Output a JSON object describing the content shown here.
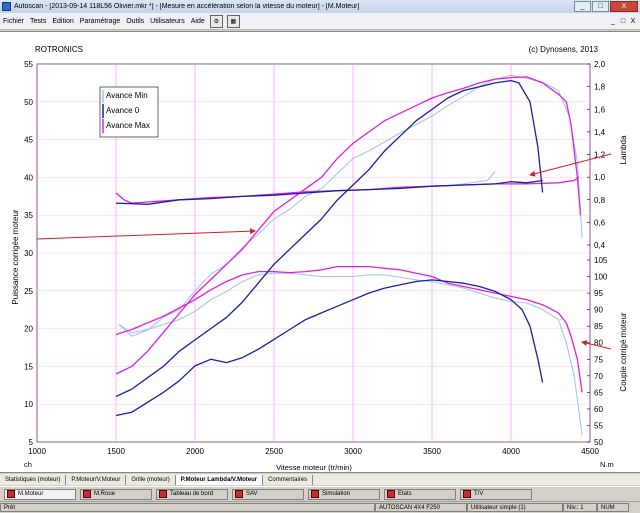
{
  "window": {
    "title": "Autoscan - [2013-09-14 118L56 Olivier.mkr *] - [Mesure en accélération selon la vitesse du moteur] - [M.Moteur]",
    "controls": [
      "_",
      "□",
      "X"
    ]
  },
  "menu": {
    "items": [
      "Fichier",
      "Tests",
      "Edition",
      "Paramétrage",
      "Outils",
      "Utilisateurs",
      "Aide"
    ],
    "doc_controls": [
      "_",
      "□",
      "X"
    ]
  },
  "chart_data": {
    "type": "line",
    "title": "ROTRONICS",
    "copyright": "(c) Dynosens, 2013",
    "xlabel": "Vitesse moteur (tr/min)",
    "x_unit": "ch",
    "x_unit_right": "N.m",
    "xlim": [
      1000,
      4500
    ],
    "x_ticks": [
      1000,
      1500,
      2000,
      2500,
      3000,
      3500,
      4000,
      4500
    ],
    "ylabel_left": "Puissance corrigée moteur",
    "ylim_left": [
      5,
      55
    ],
    "y_ticks_left": [
      5,
      10,
      15,
      20,
      25,
      30,
      35,
      40,
      45,
      50,
      55
    ],
    "ylabel_lambda": "Lambda",
    "ylim_lambda": [
      0.4,
      2.0
    ],
    "y_ticks_lambda": [
      "2,0",
      "1,8",
      "1,6",
      "1,4",
      "1,2",
      "1,0",
      "0,8",
      "0,6",
      "0,4"
    ],
    "ylabel_torque": "Couple corrigé moteur",
    "ylim_torque": [
      50,
      105
    ],
    "y_ticks_torque": [
      50,
      55,
      60,
      65,
      70,
      75,
      80,
      85,
      90,
      95,
      100,
      105
    ],
    "legend": [
      "Avance Min",
      "Avance 0",
      "Avance Max"
    ],
    "colors": {
      "Avance Min": "#9cc3e8",
      "Avance 0": "#1a1f9e",
      "Avance Max": "#e020e0",
      "arrow": "#d42020"
    },
    "series": [
      {
        "name": "Avance Min",
        "metric": "power",
        "points": [
          [
            1520,
            20.5
          ],
          [
            1600,
            19
          ],
          [
            1700,
            19.8
          ],
          [
            1800,
            21.5
          ],
          [
            1900,
            22.5
          ],
          [
            2000,
            25
          ],
          [
            2100,
            27.2
          ],
          [
            2200,
            28.5
          ],
          [
            2300,
            30.7
          ],
          [
            2400,
            32.5
          ],
          [
            2500,
            34.5
          ],
          [
            2600,
            35.8
          ],
          [
            2700,
            37.5
          ],
          [
            2800,
            38.5
          ],
          [
            2900,
            40.5
          ],
          [
            3000,
            42.5
          ],
          [
            3100,
            43.5
          ],
          [
            3200,
            44.7
          ],
          [
            3300,
            45.9
          ],
          [
            3400,
            47
          ],
          [
            3500,
            48.1
          ],
          [
            3600,
            49.5
          ],
          [
            3700,
            50.7
          ],
          [
            3800,
            52
          ],
          [
            3900,
            53
          ],
          [
            4000,
            53.5
          ],
          [
            4100,
            53.1
          ],
          [
            4200,
            52.6
          ],
          [
            4300,
            51.5
          ],
          [
            4370,
            48
          ],
          [
            4420,
            42
          ],
          [
            4450,
            32
          ]
        ]
      },
      {
        "name": "Avance 0",
        "metric": "power",
        "points": [
          [
            1500,
            11
          ],
          [
            1600,
            12
          ],
          [
            1700,
            13.5
          ],
          [
            1800,
            15
          ],
          [
            1900,
            17
          ],
          [
            2000,
            18.5
          ],
          [
            2100,
            20
          ],
          [
            2200,
            21.5
          ],
          [
            2300,
            23.5
          ],
          [
            2400,
            26
          ],
          [
            2500,
            28.5
          ],
          [
            2600,
            30.5
          ],
          [
            2700,
            32.5
          ],
          [
            2800,
            34.5
          ],
          [
            2900,
            37
          ],
          [
            3000,
            39
          ],
          [
            3100,
            41
          ],
          [
            3200,
            43.5
          ],
          [
            3300,
            45.5
          ],
          [
            3400,
            47.5
          ],
          [
            3500,
            49
          ],
          [
            3600,
            50.5
          ],
          [
            3700,
            51.5
          ],
          [
            3800,
            52
          ],
          [
            3900,
            52.5
          ],
          [
            4000,
            52.8
          ],
          [
            4050,
            52.5
          ],
          [
            4120,
            50
          ],
          [
            4170,
            44
          ],
          [
            4200,
            38
          ]
        ]
      },
      {
        "name": "Avance Max",
        "metric": "power",
        "points": [
          [
            1500,
            14
          ],
          [
            1600,
            15
          ],
          [
            1700,
            17
          ],
          [
            1800,
            19.5
          ],
          [
            1900,
            22
          ],
          [
            2000,
            24.5
          ],
          [
            2100,
            26.5
          ],
          [
            2200,
            28.5
          ],
          [
            2300,
            30.5
          ],
          [
            2400,
            33
          ],
          [
            2500,
            35.5
          ],
          [
            2600,
            37
          ],
          [
            2700,
            38.5
          ],
          [
            2800,
            40
          ],
          [
            2900,
            42.5
          ],
          [
            3000,
            44.5
          ],
          [
            3100,
            46
          ],
          [
            3200,
            47.5
          ],
          [
            3300,
            48.5
          ],
          [
            3400,
            49.5
          ],
          [
            3500,
            50.5
          ],
          [
            3600,
            51.2
          ],
          [
            3700,
            51.8
          ],
          [
            3800,
            52.5
          ],
          [
            3900,
            53
          ],
          [
            4000,
            53.2
          ],
          [
            4100,
            53.3
          ],
          [
            4200,
            52.5
          ],
          [
            4300,
            51
          ],
          [
            4350,
            50
          ],
          [
            4380,
            47
          ],
          [
            4420,
            40
          ],
          [
            4440,
            35
          ]
        ]
      },
      {
        "name": "Avance 0",
        "metric": "lambda",
        "points": [
          [
            1500,
            0.77
          ],
          [
            1700,
            0.76
          ],
          [
            1900,
            0.8
          ],
          [
            2100,
            0.81
          ],
          [
            2300,
            0.83
          ],
          [
            2500,
            0.84
          ],
          [
            2700,
            0.86
          ],
          [
            2900,
            0.88
          ],
          [
            3100,
            0.89
          ],
          [
            3300,
            0.9
          ],
          [
            3500,
            0.92
          ],
          [
            3700,
            0.93
          ],
          [
            3900,
            0.94
          ],
          [
            4000,
            0.96
          ],
          [
            4100,
            0.95
          ],
          [
            4200,
            0.97
          ]
        ]
      },
      {
        "name": "Avance Max",
        "metric": "lambda",
        "points": [
          [
            1500,
            0.86
          ],
          [
            1550,
            0.8
          ],
          [
            1600,
            0.77
          ],
          [
            1700,
            0.78
          ],
          [
            1900,
            0.8
          ],
          [
            2100,
            0.82
          ],
          [
            2300,
            0.83
          ],
          [
            2500,
            0.85
          ],
          [
            2700,
            0.87
          ],
          [
            2900,
            0.88
          ],
          [
            3100,
            0.89
          ],
          [
            3300,
            0.91
          ],
          [
            3500,
            0.92
          ],
          [
            3700,
            0.93
          ],
          [
            3900,
            0.94
          ],
          [
            4100,
            0.94
          ],
          [
            4300,
            0.95
          ],
          [
            4400,
            0.97
          ],
          [
            4430,
            1.0
          ]
        ]
      },
      {
        "name": "Avance Min",
        "metric": "lambda",
        "points": [
          [
            3650,
            0.93
          ],
          [
            3750,
            0.95
          ],
          [
            3850,
            0.97
          ],
          [
            3900,
            1.05
          ]
        ]
      },
      {
        "name": "Avance Min",
        "metric": "torque",
        "points": [
          [
            1520,
            85.5
          ],
          [
            1600,
            83
          ],
          [
            1700,
            84
          ],
          [
            1800,
            85.5
          ],
          [
            1900,
            87
          ],
          [
            2000,
            89.5
          ],
          [
            2100,
            93
          ],
          [
            2200,
            95.5
          ],
          [
            2300,
            98.5
          ],
          [
            2400,
            100.5
          ],
          [
            2500,
            101
          ],
          [
            2600,
            101
          ],
          [
            2700,
            100.5
          ],
          [
            2800,
            100
          ],
          [
            2900,
            100
          ],
          [
            3000,
            100
          ],
          [
            3100,
            100.5
          ],
          [
            3200,
            100.5
          ],
          [
            3300,
            99.8
          ],
          [
            3400,
            99
          ],
          [
            3500,
            98.5
          ],
          [
            3600,
            97.5
          ],
          [
            3700,
            96.5
          ],
          [
            3800,
            95
          ],
          [
            3900,
            93.5
          ],
          [
            4000,
            92.5
          ],
          [
            4100,
            92
          ],
          [
            4200,
            90
          ],
          [
            4300,
            87
          ],
          [
            4350,
            80
          ],
          [
            4400,
            70
          ],
          [
            4450,
            52
          ]
        ]
      },
      {
        "name": "Avance 0",
        "metric": "torque",
        "points": [
          [
            1500,
            58
          ],
          [
            1600,
            59
          ],
          [
            1700,
            62
          ],
          [
            1800,
            65
          ],
          [
            1900,
            68.5
          ],
          [
            2000,
            73
          ],
          [
            2100,
            75
          ],
          [
            2200,
            74
          ],
          [
            2300,
            75.5
          ],
          [
            2400,
            78
          ],
          [
            2500,
            81
          ],
          [
            2600,
            84
          ],
          [
            2700,
            87
          ],
          [
            2800,
            89
          ],
          [
            2900,
            91
          ],
          [
            3000,
            93
          ],
          [
            3100,
            95
          ],
          [
            3200,
            96.5
          ],
          [
            3300,
            97.5
          ],
          [
            3400,
            98.5
          ],
          [
            3500,
            99
          ],
          [
            3600,
            98.5
          ],
          [
            3700,
            98
          ],
          [
            3800,
            97
          ],
          [
            3900,
            95.5
          ],
          [
            4000,
            93
          ],
          [
            4070,
            90
          ],
          [
            4120,
            85
          ],
          [
            4170,
            75
          ],
          [
            4200,
            68
          ]
        ]
      },
      {
        "name": "Avance Max",
        "metric": "torque",
        "points": [
          [
            1500,
            82.5
          ],
          [
            1600,
            84
          ],
          [
            1700,
            86
          ],
          [
            1800,
            88
          ],
          [
            1900,
            90.5
          ],
          [
            2000,
            93
          ],
          [
            2100,
            96
          ],
          [
            2200,
            98.5
          ],
          [
            2300,
            100.5
          ],
          [
            2400,
            101.5
          ],
          [
            2500,
            101.5
          ],
          [
            2600,
            101.2
          ],
          [
            2700,
            101.5
          ],
          [
            2800,
            102
          ],
          [
            2900,
            103
          ],
          [
            3000,
            103
          ],
          [
            3100,
            103
          ],
          [
            3200,
            102.5
          ],
          [
            3300,
            102
          ],
          [
            3400,
            101
          ],
          [
            3500,
            100
          ],
          [
            3600,
            98
          ],
          [
            3700,
            97
          ],
          [
            3800,
            96
          ],
          [
            3900,
            95
          ],
          [
            4000,
            94
          ],
          [
            4100,
            93
          ],
          [
            4200,
            91.5
          ],
          [
            4300,
            89
          ],
          [
            4350,
            86
          ],
          [
            4380,
            82
          ],
          [
            4420,
            75
          ],
          [
            4450,
            65
          ]
        ]
      }
    ]
  },
  "subtabs": [
    "Statistiques (moteur)",
    "P.Moteur/V.Moteur",
    "Grille (moteur)",
    "P.Moteur Lambda/V.Moteur",
    "Commentaires"
  ],
  "subtab_active": 3,
  "bottom_tabs": [
    "M.Moteur",
    "M.Roue",
    "Tableau de bord",
    "SAV",
    "Simulation",
    "Etats",
    "T/V"
  ],
  "status": {
    "left": "Prêt",
    "center": "AUTOSCAN 4X4 F250",
    "user": "Utilisateur simple (1)",
    "level": "Niv.: 1",
    "num": "NUM"
  }
}
